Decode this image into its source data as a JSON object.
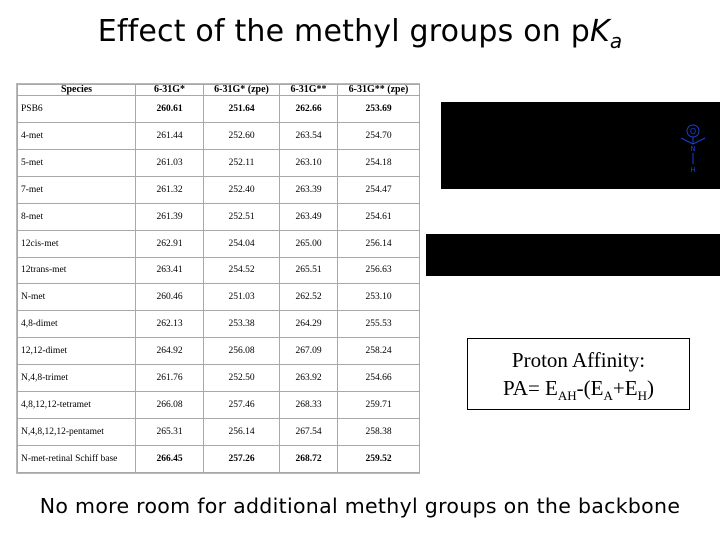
{
  "title": {
    "prefix": "Effect of the methyl groups on p",
    "k": "K",
    "sub": "a"
  },
  "table": {
    "headers": [
      "Species",
      "6-31G*",
      "6-31G* (zpe)",
      "6-31G**",
      "6-31G** (zpe)"
    ],
    "rows": [
      {
        "species": "PSB6",
        "v": [
          "260.61",
          "251.64",
          "262.66",
          "253.69"
        ],
        "bold": true
      },
      {
        "species": "4-met",
        "v": [
          "261.44",
          "252.60",
          "263.54",
          "254.70"
        ],
        "bold": false
      },
      {
        "species": "5-met",
        "v": [
          "261.03",
          "252.11",
          "263.10",
          "254.18"
        ],
        "bold": false
      },
      {
        "species": "7-met",
        "v": [
          "261.32",
          "252.40",
          "263.39",
          "254.47"
        ],
        "bold": false
      },
      {
        "species": "8-met",
        "v": [
          "261.39",
          "252.51",
          "263.49",
          "254.61"
        ],
        "bold": false
      },
      {
        "species": "12cis-met",
        "v": [
          "262.91",
          "254.04",
          "265.00",
          "256.14"
        ],
        "bold": false
      },
      {
        "species": "12trans-met",
        "v": [
          "263.41",
          "254.52",
          "265.51",
          "256.63"
        ],
        "bold": false
      },
      {
        "species": "N-met",
        "v": [
          "260.46",
          "251.03",
          "262.52",
          "253.10"
        ],
        "bold": false
      },
      {
        "species": "4,8-dimet",
        "v": [
          "262.13",
          "253.38",
          "264.29",
          "255.53"
        ],
        "bold": false
      },
      {
        "species": "12,12-dimet",
        "v": [
          "264.92",
          "256.08",
          "267.09",
          "258.24"
        ],
        "bold": false
      },
      {
        "species": "N,4,8-trimet",
        "v": [
          "261.76",
          "252.50",
          "263.92",
          "254.66"
        ],
        "bold": false
      },
      {
        "species": "4,8,12,12-tetramet",
        "v": [
          "266.08",
          "257.46",
          "268.33",
          "259.71"
        ],
        "bold": false
      },
      {
        "species": "N,4,8,12,12-pentamet",
        "v": [
          "265.31",
          "256.14",
          "267.54",
          "258.38"
        ],
        "bold": false
      },
      {
        "species": "N-met-retinal Schiff base",
        "v": [
          "266.45",
          "257.26",
          "268.72",
          "259.52"
        ],
        "bold": true
      }
    ]
  },
  "molecule": {
    "atom_o": "O",
    "atom_n": "N",
    "atom_h": "H",
    "color": "#1a3fd0"
  },
  "proton_affinity": {
    "line1": "Proton Affinity:",
    "pa_prefix": "PA= E",
    "sub_ah": "AH",
    "mid": "-(E",
    "sub_a": "A",
    "plus": "+E",
    "sub_h": "H",
    "close": ")"
  },
  "footer": "No more room for additional methyl groups on the backbone"
}
